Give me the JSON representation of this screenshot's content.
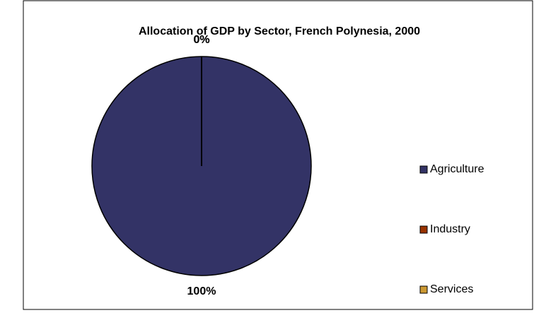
{
  "chart_data": {
    "type": "pie",
    "title": "Allocation of GDP by Sector, French Polynesia, 2000",
    "categories": [
      "Agriculture",
      "Industry",
      "Services"
    ],
    "values": [
      100,
      0,
      0
    ],
    "value_labels": [
      "100%",
      "0%",
      "0%"
    ],
    "colors": [
      "#333366",
      "#993300",
      "#cc9933"
    ]
  }
}
